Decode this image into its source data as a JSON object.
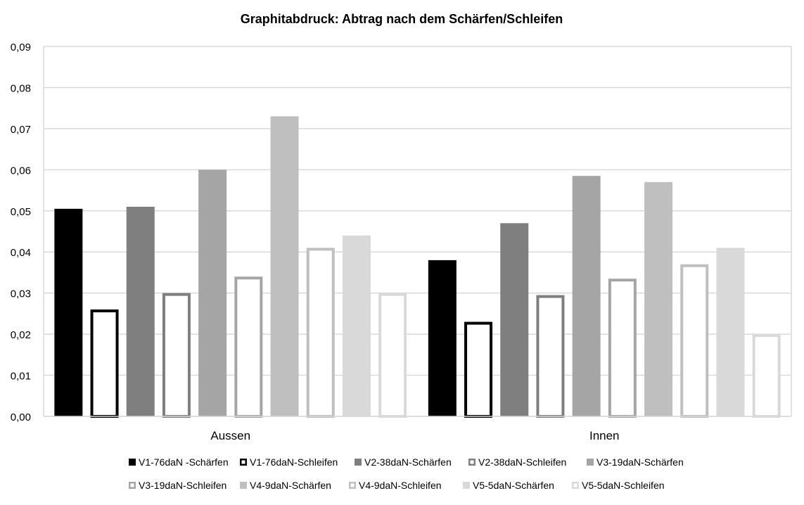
{
  "chart_data": {
    "type": "bar",
    "title": "Graphitabdruck: Abtrag nach dem Schärfen/Schleifen",
    "xlabel": "",
    "ylabel": "",
    "ylim": [
      0,
      0.09
    ],
    "yticks": [
      "0,00",
      "0,01",
      "0,02",
      "0,03",
      "0,04",
      "0,05",
      "0,06",
      "0,07",
      "0,08",
      "0,09"
    ],
    "ytick_values": [
      0,
      0.01,
      0.02,
      0.03,
      0.04,
      0.05,
      0.06,
      0.07,
      0.08,
      0.09
    ],
    "grid": true,
    "legend_position": "bottom",
    "categories": [
      "Aussen",
      "Innen"
    ],
    "series": [
      {
        "name": "V1-76daN -Schärfen",
        "values": [
          0.0505,
          0.038
        ],
        "style": "filled",
        "color": "#000000"
      },
      {
        "name": "V1-76daN-Schleifen",
        "values": [
          0.026,
          0.023
        ],
        "style": "outline",
        "color": "#000000"
      },
      {
        "name": "V2-38daN-Schärfen",
        "values": [
          0.051,
          0.047
        ],
        "style": "filled",
        "color": "#7f7f7f"
      },
      {
        "name": "V2-38daN-Schleifen",
        "values": [
          0.03,
          0.0295
        ],
        "style": "outline",
        "color": "#7f7f7f"
      },
      {
        "name": "V3-19daN-Schärfen",
        "values": [
          0.06,
          0.0585
        ],
        "style": "filled",
        "color": "#a5a5a5"
      },
      {
        "name": "V3-19daN-Schleifen",
        "values": [
          0.034,
          0.0335
        ],
        "style": "outline",
        "color": "#a5a5a5"
      },
      {
        "name": "V4-9daN-Schärfen",
        "values": [
          0.073,
          0.057
        ],
        "style": "filled",
        "color": "#bfbfbf"
      },
      {
        "name": "V4-9daN-Schleifen",
        "values": [
          0.041,
          0.037
        ],
        "style": "outline",
        "color": "#bfbfbf"
      },
      {
        "name": "V5-5daN-Schärfen",
        "values": [
          0.044,
          0.041
        ],
        "style": "filled",
        "color": "#d9d9d9"
      },
      {
        "name": "V5-5daN-Schleifen",
        "values": [
          0.03,
          0.02
        ],
        "style": "outline",
        "color": "#d9d9d9"
      }
    ]
  }
}
